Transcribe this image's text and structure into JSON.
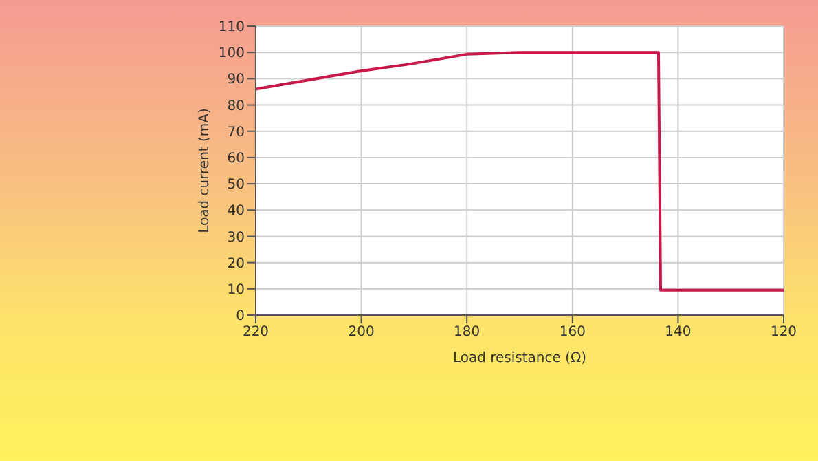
{
  "chart_data": {
    "type": "line",
    "xlabel": "Load resistance (Ω)",
    "ylabel": "Load current  (mA)",
    "x": [
      220,
      210,
      200,
      191,
      180,
      170,
      143.7,
      143.3,
      120
    ],
    "series": [
      {
        "color": "#c8184a",
        "values": [
          86,
          89.5,
          93,
          95.5,
          99.3,
          100,
          100,
          9.5,
          9.5
        ]
      }
    ],
    "xlim": [
      220,
      120
    ],
    "xticks": [
      220,
      200,
      180,
      160,
      140,
      120
    ],
    "ylim": [
      0,
      110
    ],
    "yticks": [
      0,
      10,
      20,
      30,
      40,
      50,
      60,
      70,
      80,
      90,
      100,
      110
    ],
    "grid": true,
    "marker": "none",
    "line_style": "solid"
  }
}
